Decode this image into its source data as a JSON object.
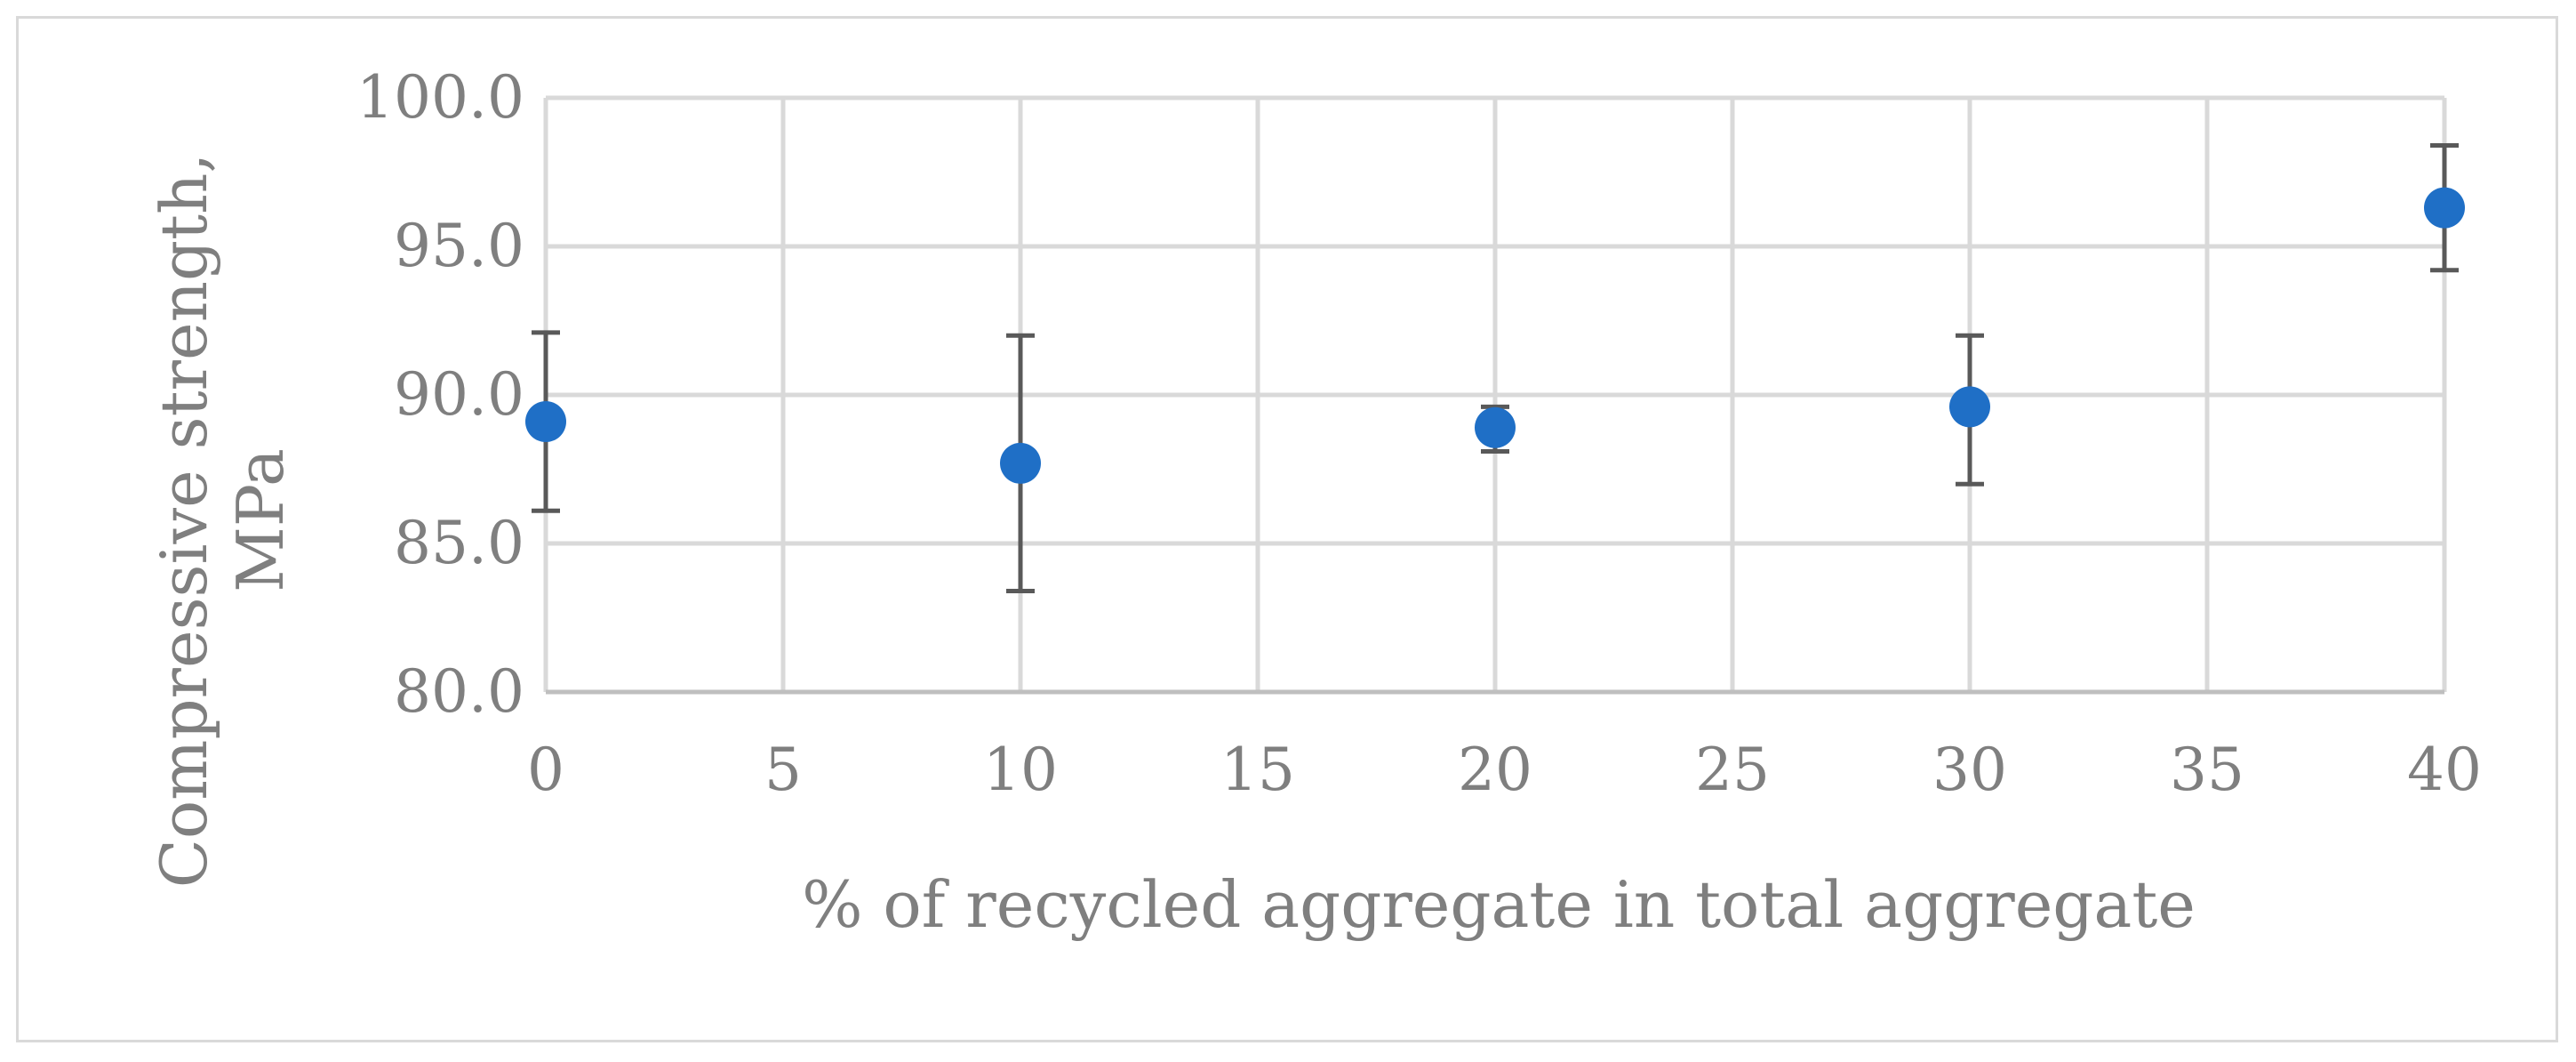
{
  "chart_data": {
    "type": "scatter",
    "title": "",
    "xlabel": "% of recycled aggregate in total aggregate",
    "ylabel_lines": [
      "Compressive strength,",
      "MPa"
    ],
    "xlim": [
      0,
      40
    ],
    "ylim": [
      80,
      100
    ],
    "x_ticks": [
      0,
      5,
      10,
      15,
      20,
      25,
      30,
      35,
      40
    ],
    "y_ticks": [
      80,
      85,
      90,
      95,
      100
    ],
    "y_tick_labels": [
      "80.0",
      "85.0",
      "90.0",
      "95.0",
      "100.0"
    ],
    "x_tick_labels": [
      "0",
      "5",
      "10",
      "15",
      "20",
      "25",
      "30",
      "35",
      "40"
    ],
    "grid": true,
    "legend": "none",
    "series": [
      {
        "x": [
          0,
          10,
          20,
          30,
          40
        ],
        "y": [
          89.1,
          87.7,
          88.9,
          89.6,
          96.3
        ],
        "error_low": [
          86.1,
          83.4,
          88.1,
          87.0,
          94.2
        ],
        "error_high": [
          92.1,
          92.0,
          89.6,
          92.0,
          98.4
        ],
        "color": "#1f6fc6"
      }
    ],
    "colors": {
      "grid": "#d9d9d9",
      "text": "#7f7f7f",
      "error_bar": "#595959",
      "marker": "#1f6fc6"
    }
  }
}
